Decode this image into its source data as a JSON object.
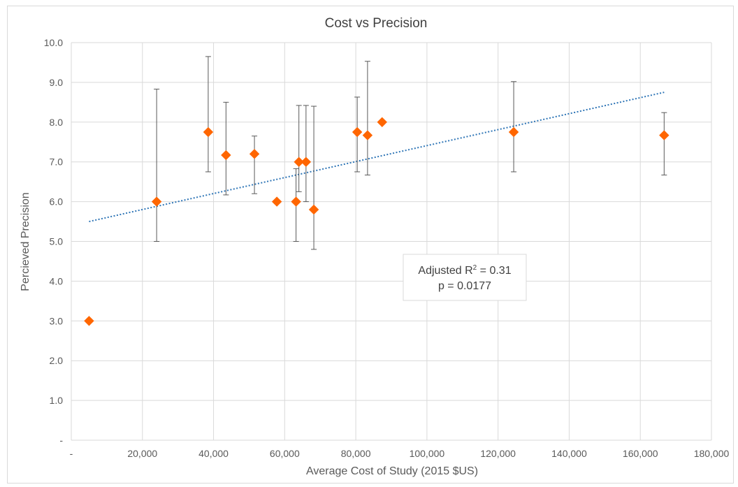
{
  "chart_data": {
    "type": "scatter",
    "title": "Cost vs Precision",
    "xlabel": "Average Cost of Study (2015 $US)",
    "ylabel": "Percieved Precision",
    "xlim": [
      0,
      180000
    ],
    "ylim": [
      0,
      10
    ],
    "x_ticks": [
      0,
      20000,
      40000,
      60000,
      80000,
      100000,
      120000,
      140000,
      160000,
      180000
    ],
    "x_tick_labels": [
      "-",
      "20,000",
      "40,000",
      "60,000",
      "80,000",
      "100,000",
      "120,000",
      "140,000",
      "160,000",
      "180,000"
    ],
    "y_ticks": [
      0,
      1,
      2,
      3,
      4,
      5,
      6,
      7,
      8,
      9,
      10
    ],
    "y_tick_labels": [
      "-",
      "1.0",
      "2.0",
      "3.0",
      "4.0",
      "5.0",
      "6.0",
      "7.0",
      "8.0",
      "9.0",
      "10.0"
    ],
    "grid": true,
    "legend": "none",
    "points": [
      {
        "x": 5000,
        "y": 3.0
      },
      {
        "x": 24000,
        "y": 6.0,
        "err_low": 5.0,
        "err_high": 8.83
      },
      {
        "x": 38500,
        "y": 7.75,
        "err_low": 6.75,
        "err_high": 9.65
      },
      {
        "x": 43500,
        "y": 7.17,
        "err_low": 6.17,
        "err_high": 8.5
      },
      {
        "x": 51500,
        "y": 7.2,
        "err_low": 6.2,
        "err_high": 7.65
      },
      {
        "x": 57800,
        "y": 6.0
      },
      {
        "x": 63200,
        "y": 6.0,
        "err_low": 5.0,
        "err_high": 6.83
      },
      {
        "x": 64000,
        "y": 7.0,
        "err_low": 6.25,
        "err_high": 8.42
      },
      {
        "x": 66000,
        "y": 7.0,
        "err_low": 6.0,
        "err_high": 8.42
      },
      {
        "x": 68200,
        "y": 5.8,
        "err_low": 4.8,
        "err_high": 8.4
      },
      {
        "x": 80400,
        "y": 7.75,
        "err_low": 6.75,
        "err_high": 8.63
      },
      {
        "x": 83300,
        "y": 7.67,
        "err_low": 6.67,
        "err_high": 9.53
      },
      {
        "x": 87400,
        "y": 8.0
      },
      {
        "x": 124400,
        "y": 7.75,
        "err_low": 6.75,
        "err_high": 9.02
      },
      {
        "x": 166700,
        "y": 7.67,
        "err_low": 6.67,
        "err_high": 8.24
      }
    ],
    "trendline": {
      "type": "linear",
      "x_start": 5000,
      "y_start": 5.5,
      "x_end": 166700,
      "y_end": 8.75,
      "color": "#2e75b6"
    },
    "annotation": {
      "line1_prefix": "Adjusted R",
      "line1_sup": "2",
      "line1_suffix": " = 0.31",
      "line2": "p = 0.0177"
    },
    "colors": {
      "marker": "#ff6600",
      "errorbar": "#595959",
      "grid": "#d9d9d9",
      "text": "#595959",
      "title": "#404040"
    }
  }
}
